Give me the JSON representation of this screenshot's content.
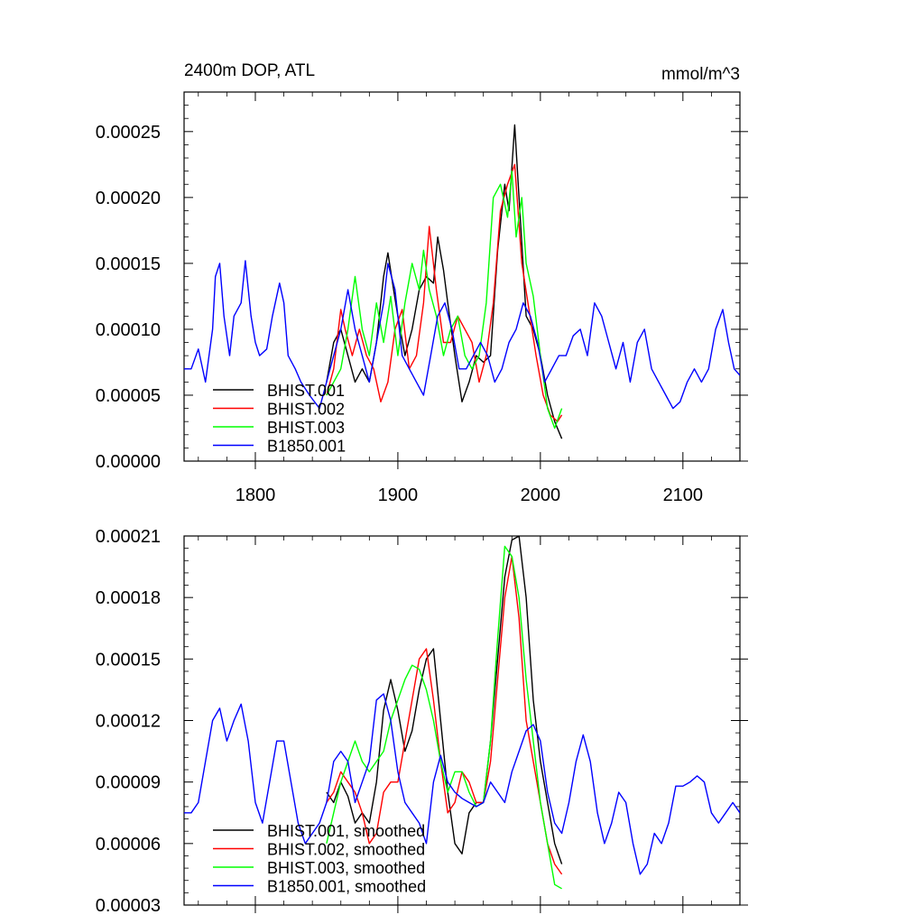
{
  "chart_data": [
    {
      "type": "line",
      "title": "2400m DOP, ATL",
      "units": "mmol/m^3",
      "xlim": [
        1750,
        2140
      ],
      "ylim": [
        0.0,
        0.00028
      ],
      "xticks": [
        1800,
        1900,
        2000,
        2100
      ],
      "xtick_labels": [
        "1800",
        "1900",
        "2000",
        "2100"
      ],
      "yticks": [
        0.0,
        5e-05,
        0.0001,
        0.00015,
        0.0002,
        0.00025
      ],
      "ytick_labels": [
        "0.00000",
        "0.00005",
        "0.00010",
        "0.00015",
        "0.00020",
        "0.00025"
      ],
      "legend_position": "bottom-left",
      "grid": false,
      "series": [
        {
          "name": "BHIST.001",
          "color": "#000000",
          "x": [
            1850,
            1855,
            1860,
            1865,
            1870,
            1875,
            1880,
            1885,
            1890,
            1893,
            1897,
            1900,
            1905,
            1910,
            1915,
            1920,
            1925,
            1928,
            1932,
            1935,
            1940,
            1945,
            1950,
            1955,
            1960,
            1965,
            1970,
            1975,
            1978,
            1982,
            1985,
            1990,
            1995,
            2000,
            2005,
            2010,
            2015
          ],
          "values": [
            6e-05,
            9e-05,
            0.0001,
            8e-05,
            6e-05,
            7e-05,
            6e-05,
            9e-05,
            0.00014,
            0.000158,
            0.00013,
            0.00011,
            8e-05,
            0.0001,
            0.00013,
            0.00014,
            0.000135,
            0.00017,
            0.000145,
            0.00012,
            8e-05,
            4.5e-05,
            6e-05,
            8e-05,
            7.5e-05,
            8e-05,
            0.00016,
            0.00021,
            0.00019,
            0.000255,
            0.0002,
            0.00011,
            0.0001,
            8e-05,
            5e-05,
            3e-05,
            1.7e-05
          ]
        },
        {
          "name": "BHIST.002",
          "color": "#ff0000",
          "x": [
            1850,
            1855,
            1860,
            1863,
            1868,
            1873,
            1878,
            1883,
            1888,
            1893,
            1898,
            1903,
            1908,
            1913,
            1918,
            1922,
            1927,
            1932,
            1937,
            1942,
            1947,
            1952,
            1957,
            1962,
            1967,
            1972,
            1977,
            1982,
            1987,
            1992,
            1997,
            2002,
            2007,
            2012,
            2015
          ],
          "values": [
            5e-05,
            7e-05,
            0.000115,
            0.0001,
            8e-05,
            0.0001,
            8e-05,
            7e-05,
            4.5e-05,
            6e-05,
            0.0001,
            0.000115,
            7e-05,
            8e-05,
            0.00012,
            0.000178,
            0.00013,
            9e-05,
            9e-05,
            0.00011,
            0.0001,
            9e-05,
            6e-05,
            8e-05,
            0.00012,
            0.00019,
            0.00021,
            0.000225,
            0.00015,
            0.000115,
            8e-05,
            5e-05,
            3.5e-05,
            3e-05,
            3.5e-05
          ]
        },
        {
          "name": "BHIST.003",
          "color": "#00ff00",
          "x": [
            1850,
            1855,
            1860,
            1865,
            1870,
            1875,
            1880,
            1885,
            1890,
            1895,
            1900,
            1905,
            1910,
            1915,
            1918,
            1922,
            1927,
            1932,
            1937,
            1942,
            1947,
            1952,
            1957,
            1962,
            1967,
            1972,
            1977,
            1980,
            1983,
            1987,
            1990,
            1995,
            2000,
            2005,
            2010,
            2015
          ],
          "values": [
            5e-05,
            6e-05,
            7e-05,
            0.0001,
            0.00014,
            0.0001,
            8e-05,
            0.00012,
            9e-05,
            0.000125,
            8e-05,
            0.00012,
            0.00015,
            0.00013,
            0.00016,
            0.00013,
            0.00011,
            8e-05,
            0.0001,
            0.00011,
            8e-05,
            7e-05,
            8e-05,
            0.00012,
            0.0002,
            0.00021,
            0.000185,
            0.00022,
            0.00017,
            0.0002,
            0.00015,
            0.000125,
            8e-05,
            4e-05,
            2.5e-05,
            4e-05
          ]
        },
        {
          "name": "B1850.001",
          "color": "#0000ff",
          "x": [
            1750,
            1755,
            1760,
            1765,
            1770,
            1772,
            1775,
            1778,
            1782,
            1785,
            1790,
            1793,
            1797,
            1800,
            1803,
            1808,
            1812,
            1817,
            1820,
            1823,
            1828,
            1832,
            1838,
            1845,
            1850,
            1855,
            1860,
            1865,
            1870,
            1875,
            1880,
            1885,
            1890,
            1893,
            1898,
            1903,
            1908,
            1913,
            1918,
            1923,
            1928,
            1933,
            1938,
            1943,
            1948,
            1953,
            1958,
            1963,
            1968,
            1973,
            1978,
            1983,
            1988,
            1993,
            1998,
            2003,
            2008,
            2013,
            2018,
            2023,
            2028,
            2033,
            2038,
            2043,
            2048,
            2053,
            2058,
            2063,
            2068,
            2073,
            2078,
            2083,
            2088,
            2093,
            2098,
            2103,
            2108,
            2113,
            2118,
            2123,
            2128,
            2132,
            2136,
            2140
          ],
          "values": [
            7e-05,
            7e-05,
            8.5e-05,
            6e-05,
            0.0001,
            0.00014,
            0.00015,
            0.00011,
            8e-05,
            0.00011,
            0.00012,
            0.000152,
            0.00011,
            9e-05,
            8e-05,
            8.5e-05,
            0.00011,
            0.000135,
            0.00012,
            8e-05,
            7e-05,
            6e-05,
            5e-05,
            4e-05,
            6e-05,
            8e-05,
            0.0001,
            0.00013,
            0.0001,
            8e-05,
            6e-05,
            9e-05,
            0.00012,
            0.00015,
            0.00013,
            8e-05,
            7e-05,
            6e-05,
            5e-05,
            8e-05,
            0.00011,
            0.00012,
            0.0001,
            7e-05,
            7e-05,
            8e-05,
            9e-05,
            8e-05,
            6e-05,
            7e-05,
            9e-05,
            0.0001,
            0.00012,
            0.00011,
            9e-05,
            6e-05,
            7e-05,
            8e-05,
            8e-05,
            9.5e-05,
            0.0001,
            8e-05,
            0.00012,
            0.00011,
            9e-05,
            7e-05,
            9e-05,
            6e-05,
            9e-05,
            0.0001,
            7e-05,
            6e-05,
            5e-05,
            4e-05,
            4.5e-05,
            6e-05,
            7e-05,
            6e-05,
            7e-05,
            0.0001,
            0.000115,
            9e-05,
            7e-05,
            6.5e-05
          ]
        }
      ]
    },
    {
      "type": "line",
      "xlim": [
        1750,
        2140
      ],
      "ylim": [
        3e-05,
        0.00021
      ],
      "xticks": [
        1800,
        1900,
        2000,
        2100
      ],
      "yticks": [
        3e-05,
        6e-05,
        9e-05,
        0.00012,
        0.00015,
        0.00018,
        0.00021
      ],
      "ytick_labels": [
        "0.00003",
        "0.00006",
        "0.00009",
        "0.00012",
        "0.00015",
        "0.00018",
        "0.00021"
      ],
      "legend_position": "bottom-left",
      "grid": false,
      "series": [
        {
          "name": "BHIST.001, smoothed",
          "color": "#000000",
          "x": [
            1850,
            1855,
            1860,
            1865,
            1870,
            1875,
            1880,
            1885,
            1890,
            1895,
            1900,
            1905,
            1910,
            1915,
            1920,
            1925,
            1930,
            1935,
            1940,
            1945,
            1950,
            1955,
            1960,
            1965,
            1970,
            1975,
            1980,
            1985,
            1990,
            1995,
            2000,
            2005,
            2010,
            2015
          ],
          "values": [
            8.5e-05,
            8e-05,
            9e-05,
            8.3e-05,
            7e-05,
            7.5e-05,
            7e-05,
            9e-05,
            0.000125,
            0.00014,
            0.000125,
            0.000105,
            0.000115,
            0.000135,
            0.00015,
            0.000155,
            0.00012,
            8.5e-05,
            6e-05,
            5.5e-05,
            7.5e-05,
            8e-05,
            8e-05,
            0.00011,
            0.00015,
            0.00019,
            0.000208,
            0.00021,
            0.00018,
            0.00013,
            0.0001,
            8e-05,
            6e-05,
            5e-05
          ]
        },
        {
          "name": "BHIST.002, smoothed",
          "color": "#ff0000",
          "x": [
            1850,
            1855,
            1860,
            1865,
            1870,
            1875,
            1880,
            1885,
            1890,
            1895,
            1900,
            1905,
            1910,
            1915,
            1920,
            1925,
            1930,
            1935,
            1940,
            1945,
            1950,
            1955,
            1960,
            1965,
            1970,
            1975,
            1980,
            1985,
            1990,
            1995,
            2000,
            2005,
            2010,
            2015
          ],
          "values": [
            8e-05,
            8.5e-05,
            9.5e-05,
            9e-05,
            8.5e-05,
            7.5e-05,
            6e-05,
            6.5e-05,
            8.5e-05,
            9e-05,
            9e-05,
            0.00011,
            0.00013,
            0.00015,
            0.000155,
            0.00013,
            0.0001,
            7.5e-05,
            8e-05,
            9.5e-05,
            9e-05,
            8e-05,
            8e-05,
            0.0001,
            0.00014,
            0.00018,
            0.0002,
            0.00017,
            0.00012,
            0.0001,
            8e-05,
            6e-05,
            5e-05,
            4.5e-05
          ]
        },
        {
          "name": "BHIST.003, smoothed",
          "color": "#00ff00",
          "x": [
            1850,
            1855,
            1860,
            1865,
            1870,
            1875,
            1880,
            1885,
            1890,
            1895,
            1900,
            1905,
            1910,
            1915,
            1920,
            1925,
            1930,
            1935,
            1940,
            1945,
            1950,
            1955,
            1960,
            1965,
            1970,
            1975,
            1980,
            1985,
            1990,
            1995,
            2000,
            2005,
            2010,
            2015
          ],
          "values": [
            6e-05,
            7.5e-05,
            9e-05,
            0.0001,
            0.00011,
            0.0001,
            9.5e-05,
            0.0001,
            0.000105,
            0.00012,
            0.00013,
            0.00014,
            0.000147,
            0.000145,
            0.000135,
            0.00012,
            0.0001,
            8.5e-05,
            9.5e-05,
            9.5e-05,
            8.5e-05,
            7.8e-05,
            8e-05,
            0.00011,
            0.00016,
            0.000205,
            0.0002,
            0.00018,
            0.00014,
            0.00011,
            8e-05,
            6e-05,
            4e-05,
            3.8e-05
          ]
        },
        {
          "name": "B1850.001, smoothed",
          "color": "#0000ff",
          "x": [
            1750,
            1755,
            1760,
            1765,
            1770,
            1775,
            1780,
            1785,
            1790,
            1795,
            1800,
            1805,
            1810,
            1815,
            1820,
            1825,
            1830,
            1835,
            1840,
            1845,
            1850,
            1855,
            1860,
            1865,
            1870,
            1875,
            1880,
            1885,
            1890,
            1895,
            1900,
            1905,
            1910,
            1915,
            1920,
            1925,
            1930,
            1935,
            1940,
            1945,
            1950,
            1955,
            1960,
            1965,
            1970,
            1975,
            1980,
            1985,
            1990,
            1995,
            2000,
            2005,
            2010,
            2015,
            2020,
            2025,
            2030,
            2035,
            2040,
            2045,
            2050,
            2055,
            2060,
            2065,
            2070,
            2075,
            2080,
            2085,
            2090,
            2095,
            2100,
            2105,
            2110,
            2115,
            2120,
            2125,
            2130,
            2135,
            2140
          ],
          "values": [
            7.5e-05,
            7.5e-05,
            8e-05,
            0.0001,
            0.00012,
            0.000126,
            0.00011,
            0.00012,
            0.000128,
            0.00011,
            8e-05,
            7e-05,
            9e-05,
            0.00011,
            0.00011,
            9e-05,
            7e-05,
            6e-05,
            6.5e-05,
            7e-05,
            8e-05,
            0.0001,
            0.000105,
            0.0001,
            8e-05,
            9e-05,
            0.0001,
            0.00013,
            0.000133,
            0.00012,
            9.5e-05,
            8e-05,
            7.5e-05,
            7e-05,
            6e-05,
            9e-05,
            0.000103,
            9e-05,
            8.5e-05,
            8.2e-05,
            8e-05,
            7.8e-05,
            8e-05,
            9e-05,
            8.5e-05,
            8e-05,
            9.5e-05,
            0.000105,
            0.000115,
            0.000118,
            0.00011,
            8.5e-05,
            7e-05,
            6.5e-05,
            8e-05,
            0.0001,
            0.000113,
            0.0001,
            7.5e-05,
            6e-05,
            7e-05,
            8.5e-05,
            8e-05,
            6e-05,
            4.5e-05,
            5e-05,
            6.5e-05,
            6e-05,
            7e-05,
            8.8e-05,
            8.8e-05,
            9e-05,
            9.3e-05,
            9e-05,
            7.5e-05,
            7e-05,
            7.5e-05,
            8e-05,
            7.5e-05
          ]
        }
      ]
    }
  ]
}
